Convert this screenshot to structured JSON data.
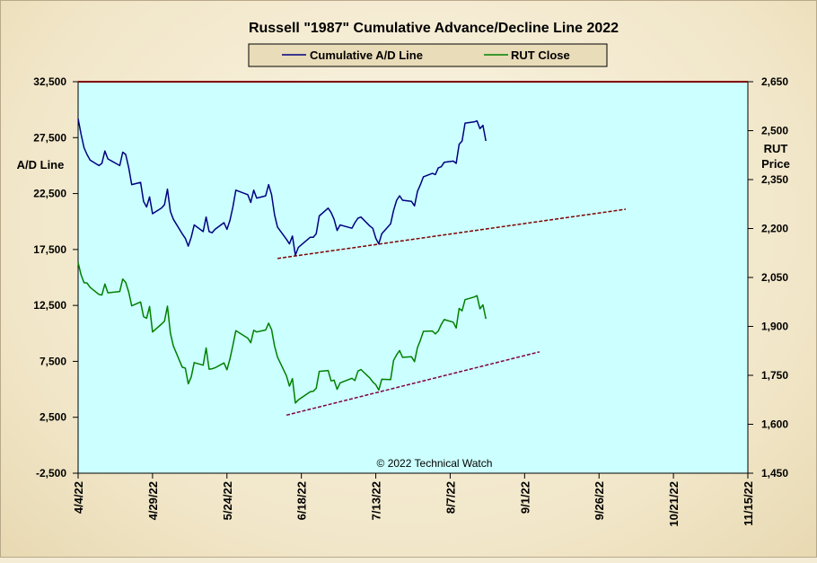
{
  "chart_data": {
    "type": "line",
    "title": "Russell \"1987\" Cumulative Advance/Decline Line 2022",
    "copyright": "© 2022  Technical Watch",
    "ylabel_left": "A/D Line",
    "ylabel_right": [
      "RUT",
      "Price"
    ],
    "x_ticks": [
      "4/4/22",
      "4/29/22",
      "5/24/22",
      "6/18/22",
      "7/13/22",
      "8/7/22",
      "9/1/22",
      "9/26/22",
      "10/21/22",
      "11/15/22"
    ],
    "x_range": [
      "2022-04-04",
      "2022-11-15"
    ],
    "y_left": {
      "min": -2500,
      "max": 32500,
      "ticks": [
        "-2,500",
        "2,500",
        "7,500",
        "12,500",
        "17,500",
        "22,500",
        "27,500",
        "32,500"
      ]
    },
    "y_right": {
      "min": 1450,
      "max": 2650,
      "ticks": [
        "1,450",
        "1,600",
        "1,750",
        "1,900",
        "2,050",
        "2,200",
        "2,350",
        "2,500",
        "2,650"
      ]
    },
    "plot_background": "#ccffff",
    "legend_position": "top-center",
    "series": [
      {
        "name": "Cumulative A/D Line",
        "axis": "left",
        "color": "#000080",
        "points": [
          [
            "2022-04-04",
            29200
          ],
          [
            "2022-04-05",
            27800
          ],
          [
            "2022-04-06",
            26600
          ],
          [
            "2022-04-07",
            26000
          ],
          [
            "2022-04-08",
            25500
          ],
          [
            "2022-04-11",
            25000
          ],
          [
            "2022-04-12",
            25200
          ],
          [
            "2022-04-13",
            26300
          ],
          [
            "2022-04-14",
            25600
          ],
          [
            "2022-04-18",
            25000
          ],
          [
            "2022-04-19",
            26200
          ],
          [
            "2022-04-20",
            26000
          ],
          [
            "2022-04-21",
            24800
          ],
          [
            "2022-04-22",
            23300
          ],
          [
            "2022-04-25",
            23500
          ],
          [
            "2022-04-26",
            21800
          ],
          [
            "2022-04-27",
            21300
          ],
          [
            "2022-04-28",
            22200
          ],
          [
            "2022-04-29",
            20700
          ],
          [
            "2022-05-02",
            21200
          ],
          [
            "2022-05-03",
            21500
          ],
          [
            "2022-05-04",
            22900
          ],
          [
            "2022-05-05",
            20900
          ],
          [
            "2022-05-06",
            20200
          ],
          [
            "2022-05-09",
            18900
          ],
          [
            "2022-05-10",
            18500
          ],
          [
            "2022-05-11",
            17800
          ],
          [
            "2022-05-12",
            18600
          ],
          [
            "2022-05-13",
            19700
          ],
          [
            "2022-05-16",
            19100
          ],
          [
            "2022-05-17",
            20400
          ],
          [
            "2022-05-18",
            19100
          ],
          [
            "2022-05-19",
            19000
          ],
          [
            "2022-05-20",
            19300
          ],
          [
            "2022-05-23",
            19900
          ],
          [
            "2022-05-24",
            19300
          ],
          [
            "2022-05-25",
            20100
          ],
          [
            "2022-05-26",
            21300
          ],
          [
            "2022-05-27",
            22800
          ],
          [
            "2022-05-31",
            22400
          ],
          [
            "2022-06-01",
            21700
          ],
          [
            "2022-06-02",
            22800
          ],
          [
            "2022-06-03",
            22100
          ],
          [
            "2022-06-06",
            22300
          ],
          [
            "2022-06-07",
            23300
          ],
          [
            "2022-06-08",
            22400
          ],
          [
            "2022-06-09",
            20600
          ],
          [
            "2022-06-10",
            19500
          ],
          [
            "2022-06-13",
            18400
          ],
          [
            "2022-06-14",
            18000
          ],
          [
            "2022-06-15",
            18700
          ],
          [
            "2022-06-16",
            17000
          ],
          [
            "2022-06-17",
            17700
          ],
          [
            "2022-06-21",
            18600
          ],
          [
            "2022-06-22",
            18600
          ],
          [
            "2022-06-23",
            18900
          ],
          [
            "2022-06-24",
            20500
          ],
          [
            "2022-06-27",
            21200
          ],
          [
            "2022-06-28",
            20800
          ],
          [
            "2022-06-29",
            20200
          ],
          [
            "2022-06-30",
            19200
          ],
          [
            "2022-07-01",
            19700
          ],
          [
            "2022-07-05",
            19400
          ],
          [
            "2022-07-06",
            19900
          ],
          [
            "2022-07-07",
            20300
          ],
          [
            "2022-07-08",
            20400
          ],
          [
            "2022-07-11",
            19600
          ],
          [
            "2022-07-12",
            19400
          ],
          [
            "2022-07-13",
            18500
          ],
          [
            "2022-07-14",
            18000
          ],
          [
            "2022-07-15",
            18900
          ],
          [
            "2022-07-18",
            19800
          ],
          [
            "2022-07-19",
            21000
          ],
          [
            "2022-07-20",
            21900
          ],
          [
            "2022-07-21",
            22300
          ],
          [
            "2022-07-22",
            21900
          ],
          [
            "2022-07-25",
            21800
          ],
          [
            "2022-07-26",
            21400
          ],
          [
            "2022-07-27",
            22700
          ],
          [
            "2022-07-28",
            23300
          ],
          [
            "2022-07-29",
            24000
          ],
          [
            "2022-08-01",
            24300
          ],
          [
            "2022-08-02",
            24200
          ],
          [
            "2022-08-03",
            24800
          ],
          [
            "2022-08-04",
            24900
          ],
          [
            "2022-08-05",
            25300
          ],
          [
            "2022-08-08",
            25400
          ],
          [
            "2022-08-09",
            25200
          ],
          [
            "2022-08-10",
            26900
          ],
          [
            "2022-08-11",
            27200
          ],
          [
            "2022-08-12",
            28800
          ],
          [
            "2022-08-15",
            28900
          ],
          [
            "2022-08-16",
            29000
          ],
          [
            "2022-08-17",
            28300
          ],
          [
            "2022-08-18",
            28600
          ],
          [
            "2022-08-19",
            27200
          ]
        ]
      },
      {
        "name": "RUT Close",
        "axis": "right",
        "color": "#008000",
        "points": [
          [
            "2022-04-04",
            2095
          ],
          [
            "2022-04-05",
            2058
          ],
          [
            "2022-04-06",
            2034
          ],
          [
            "2022-04-07",
            2033
          ],
          [
            "2022-04-08",
            2020
          ],
          [
            "2022-04-11",
            1998
          ],
          [
            "2022-04-12",
            1996
          ],
          [
            "2022-04-13",
            2030
          ],
          [
            "2022-04-14",
            2003
          ],
          [
            "2022-04-18",
            2007
          ],
          [
            "2022-04-19",
            2045
          ],
          [
            "2022-04-20",
            2035
          ],
          [
            "2022-04-21",
            2005
          ],
          [
            "2022-04-22",
            1963
          ],
          [
            "2022-04-25",
            1975
          ],
          [
            "2022-04-26",
            1930
          ],
          [
            "2022-04-27",
            1925
          ],
          [
            "2022-04-28",
            1961
          ],
          [
            "2022-04-29",
            1883
          ],
          [
            "2022-05-02",
            1907
          ],
          [
            "2022-05-03",
            1916
          ],
          [
            "2022-05-04",
            1962
          ],
          [
            "2022-05-05",
            1879
          ],
          [
            "2022-05-06",
            1840
          ],
          [
            "2022-05-09",
            1775
          ],
          [
            "2022-05-10",
            1772
          ],
          [
            "2022-05-11",
            1724
          ],
          [
            "2022-05-12",
            1745
          ],
          [
            "2022-05-13",
            1789
          ],
          [
            "2022-05-16",
            1781
          ],
          [
            "2022-05-17",
            1834
          ],
          [
            "2022-05-18",
            1769
          ],
          [
            "2022-05-19",
            1770
          ],
          [
            "2022-05-20",
            1773
          ],
          [
            "2022-05-23",
            1788
          ],
          [
            "2022-05-24",
            1767
          ],
          [
            "2022-05-25",
            1800
          ],
          [
            "2022-05-26",
            1842
          ],
          [
            "2022-05-27",
            1887
          ],
          [
            "2022-05-31",
            1864
          ],
          [
            "2022-06-01",
            1850
          ],
          [
            "2022-06-02",
            1888
          ],
          [
            "2022-06-03",
            1883
          ],
          [
            "2022-06-06",
            1889
          ],
          [
            "2022-06-07",
            1910
          ],
          [
            "2022-06-08",
            1890
          ],
          [
            "2022-06-09",
            1840
          ],
          [
            "2022-06-10",
            1806
          ],
          [
            "2022-06-13",
            1748
          ],
          [
            "2022-06-14",
            1717
          ],
          [
            "2022-06-15",
            1740
          ],
          [
            "2022-06-16",
            1665
          ],
          [
            "2022-06-17",
            1675
          ],
          [
            "2022-06-21",
            1700
          ],
          [
            "2022-06-22",
            1701
          ],
          [
            "2022-06-23",
            1710
          ],
          [
            "2022-06-24",
            1762
          ],
          [
            "2022-06-27",
            1765
          ],
          [
            "2022-06-28",
            1733
          ],
          [
            "2022-06-29",
            1735
          ],
          [
            "2022-06-30",
            1707
          ],
          [
            "2022-07-01",
            1727
          ],
          [
            "2022-07-05",
            1741
          ],
          [
            "2022-07-06",
            1734
          ],
          [
            "2022-07-07",
            1763
          ],
          [
            "2022-07-08",
            1768
          ],
          [
            "2022-07-11",
            1742
          ],
          [
            "2022-07-12",
            1730
          ],
          [
            "2022-07-13",
            1721
          ],
          [
            "2022-07-14",
            1705
          ],
          [
            "2022-07-15",
            1738
          ],
          [
            "2022-07-18",
            1737
          ],
          [
            "2022-07-19",
            1796
          ],
          [
            "2022-07-20",
            1813
          ],
          [
            "2022-07-21",
            1826
          ],
          [
            "2022-07-22",
            1805
          ],
          [
            "2022-07-25",
            1807
          ],
          [
            "2022-07-26",
            1792
          ],
          [
            "2022-07-27",
            1835
          ],
          [
            "2022-07-28",
            1858
          ],
          [
            "2022-07-29",
            1885
          ],
          [
            "2022-08-01",
            1886
          ],
          [
            "2022-08-02",
            1877
          ],
          [
            "2022-08-03",
            1886
          ],
          [
            "2022-08-04",
            1906
          ],
          [
            "2022-08-05",
            1921
          ],
          [
            "2022-08-08",
            1913
          ],
          [
            "2022-08-09",
            1895
          ],
          [
            "2022-08-10",
            1955
          ],
          [
            "2022-08-11",
            1948
          ],
          [
            "2022-08-12",
            1982
          ],
          [
            "2022-08-15",
            1990
          ],
          [
            "2022-08-16",
            1994
          ],
          [
            "2022-08-17",
            1954
          ],
          [
            "2022-08-18",
            1966
          ],
          [
            "2022-08-19",
            1923
          ]
        ]
      }
    ],
    "trendlines": [
      {
        "axis": "left",
        "color": "#800000",
        "from": [
          "2022-06-10",
          16700
        ],
        "to": [
          "2022-10-05",
          21100
        ]
      },
      {
        "axis": "right",
        "color": "#800040",
        "from": [
          "2022-06-13",
          1628
        ],
        "to": [
          "2022-09-06",
          1822
        ]
      }
    ]
  }
}
